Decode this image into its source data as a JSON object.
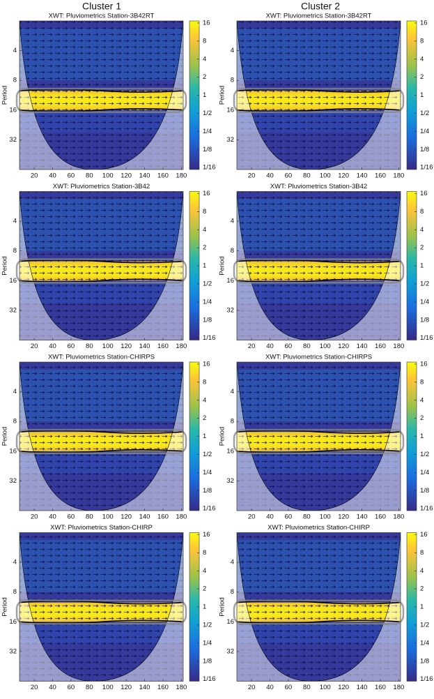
{
  "headers": [
    "Cluster 1",
    "Cluster 2"
  ],
  "chart_data": [
    {
      "type": "heatmap",
      "title": "XWT: Pluviometrics Station-3B42RT",
      "ylabel": "Period",
      "xlim": [
        4,
        182
      ],
      "xticks": [
        20,
        40,
        60,
        80,
        100,
        120,
        140,
        160,
        180
      ],
      "ylim": [
        2,
        64
      ],
      "ylog": true,
      "yticks": [
        4,
        8,
        16,
        32
      ],
      "clim": [
        0.058,
        17.3
      ],
      "clog": true,
      "cticks": [
        16,
        8,
        4,
        2,
        1,
        {
          "value": 0.5,
          "label": "1/2"
        },
        {
          "value": 0.25,
          "label": "1/4"
        },
        {
          "value": 0.125,
          "label": "1/8"
        },
        {
          "value": 0.0625,
          "label": "1/16"
        }
      ]
    },
    {
      "type": "heatmap",
      "title": "XWT: Pluviometrics Station-3B42RT",
      "ylabel": "Period",
      "xlim": [
        4,
        182
      ],
      "xticks": [
        20,
        40,
        60,
        80,
        100,
        120,
        140,
        160,
        180
      ],
      "ylim": [
        2,
        64
      ],
      "ylog": true,
      "yticks": [
        4,
        8,
        16,
        32
      ],
      "clim": [
        0.058,
        17.3
      ],
      "clog": true,
      "cticks": [
        16,
        8,
        4,
        2,
        1,
        {
          "value": 0.5,
          "label": "1/2"
        },
        {
          "value": 0.25,
          "label": "1/4"
        },
        {
          "value": 0.125,
          "label": "1/8"
        },
        {
          "value": 0.0625,
          "label": "1/16"
        }
      ]
    },
    {
      "type": "heatmap",
      "title": "XWT: Pluviometrics Station-3B42",
      "ylabel": "Period",
      "xlim": [
        4,
        182
      ],
      "xticks": [
        20,
        40,
        60,
        80,
        100,
        120,
        140,
        160,
        180
      ],
      "ylim": [
        2,
        64
      ],
      "ylog": true,
      "yticks": [
        4,
        8,
        16,
        32
      ],
      "clim": [
        0.058,
        17.3
      ],
      "clog": true,
      "cticks": [
        16,
        8,
        4,
        2,
        1,
        {
          "value": 0.5,
          "label": "1/2"
        },
        {
          "value": 0.25,
          "label": "1/4"
        },
        {
          "value": 0.125,
          "label": "1/8"
        },
        {
          "value": 0.0625,
          "label": "1/16"
        }
      ]
    },
    {
      "type": "heatmap",
      "title": "XWT: Pluviometrics Station-3B42",
      "ylabel": "Period",
      "xlim": [
        4,
        182
      ],
      "xticks": [
        20,
        40,
        60,
        80,
        100,
        120,
        140,
        160,
        180
      ],
      "ylim": [
        2,
        64
      ],
      "ylog": true,
      "yticks": [
        4,
        8,
        16,
        32
      ],
      "clim": [
        0.058,
        17.3
      ],
      "clog": true,
      "cticks": [
        16,
        8,
        4,
        2,
        1,
        {
          "value": 0.5,
          "label": "1/2"
        },
        {
          "value": 0.25,
          "label": "1/4"
        },
        {
          "value": 0.125,
          "label": "1/8"
        },
        {
          "value": 0.0625,
          "label": "1/16"
        }
      ]
    },
    {
      "type": "heatmap",
      "title": "XWT: Pluviometrics Station-CHIRPS",
      "ylabel": "Period",
      "xlim": [
        4,
        182
      ],
      "xticks": [
        20,
        40,
        60,
        80,
        100,
        120,
        140,
        160,
        180
      ],
      "ylim": [
        2,
        64
      ],
      "ylog": true,
      "yticks": [
        4,
        8,
        16,
        32
      ],
      "clim": [
        0.058,
        17.3
      ],
      "clog": true,
      "cticks": [
        16,
        8,
        4,
        2,
        1,
        {
          "value": 0.5,
          "label": "1/2"
        },
        {
          "value": 0.25,
          "label": "1/4"
        },
        {
          "value": 0.125,
          "label": "1/8"
        },
        {
          "value": 0.0625,
          "label": "1/16"
        }
      ]
    },
    {
      "type": "heatmap",
      "title": "XWT: Pluviometrics Station-CHIRPS",
      "ylabel": "Period",
      "xlim": [
        4,
        182
      ],
      "xticks": [
        20,
        40,
        60,
        80,
        100,
        120,
        140,
        160,
        180
      ],
      "ylim": [
        2,
        64
      ],
      "ylog": true,
      "yticks": [
        4,
        8,
        16,
        32
      ],
      "clim": [
        0.058,
        17.3
      ],
      "clog": true,
      "cticks": [
        16,
        8,
        4,
        2,
        1,
        {
          "value": 0.5,
          "label": "1/2"
        },
        {
          "value": 0.25,
          "label": "1/4"
        },
        {
          "value": 0.125,
          "label": "1/8"
        },
        {
          "value": 0.0625,
          "label": "1/16"
        }
      ]
    },
    {
      "type": "heatmap",
      "title": "XWT: Pluviometrics Station-CHIRP",
      "ylabel": "Period",
      "xlim": [
        4,
        182
      ],
      "xticks": [
        20,
        40,
        60,
        80,
        100,
        120,
        140,
        160,
        180
      ],
      "ylim": [
        2,
        64
      ],
      "ylog": true,
      "yticks": [
        4,
        8,
        16,
        32
      ],
      "clim": [
        0.058,
        17.3
      ],
      "clog": true,
      "cticks": [
        16,
        8,
        4,
        2,
        1,
        {
          "value": 0.5,
          "label": "1/2"
        },
        {
          "value": 0.25,
          "label": "1/4"
        },
        {
          "value": 0.125,
          "label": "1/8"
        },
        {
          "value": 0.0625,
          "label": "1/16"
        }
      ]
    },
    {
      "type": "heatmap",
      "title": "XWT: Pluviometrics Station-CHIRP",
      "ylabel": "Period",
      "xlim": [
        4,
        182
      ],
      "xticks": [
        20,
        40,
        60,
        80,
        100,
        120,
        140,
        160,
        180
      ],
      "ylim": [
        2,
        64
      ],
      "ylog": true,
      "yticks": [
        4,
        8,
        16,
        32
      ],
      "clim": [
        0.058,
        17.3
      ],
      "clog": true,
      "cticks": [
        16,
        8,
        4,
        2,
        1,
        {
          "value": 0.5,
          "label": "1/2"
        },
        {
          "value": 0.25,
          "label": "1/4"
        },
        {
          "value": 0.125,
          "label": "1/8"
        },
        {
          "value": 0.0625,
          "label": "1/16"
        }
      ]
    }
  ]
}
